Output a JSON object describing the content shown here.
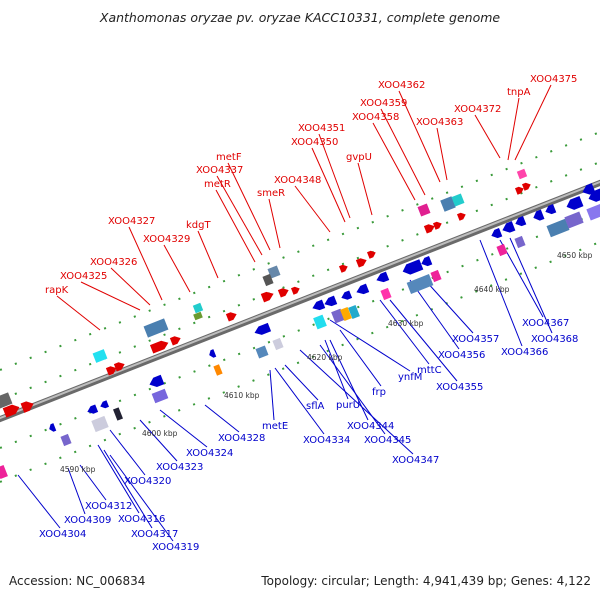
{
  "title": "Xanthomonas oryzae pv. oryzae KACC10331, complete genome",
  "accession": "Accession: NC_006834",
  "summary": "Topology: circular; Length: 4,941,439 bp; Genes: 4,122",
  "colors": {
    "forward": "#e00000",
    "reverse": "#0000cc",
    "backbone": "#888888",
    "tick": "#2a8a2a"
  },
  "scale_labels": [
    "4590 kbp",
    "4600 kbp",
    "4610 kbp",
    "4620 kbp",
    "4630 kbp",
    "4640 kbp",
    "4650 kbp"
  ],
  "forward_labels": [
    "XOO4375",
    "tnpA",
    "XOO4362",
    "XOO4372",
    "XOO4359",
    "XOO4358",
    "XOO4363",
    "XOO4351",
    "XOO4350",
    "gvpU",
    "metF",
    "XOO4337",
    "metR",
    "smeR",
    "XOO4348",
    "kdgT",
    "XOO4327",
    "XOO4329",
    "XOO4326",
    "XOO4325",
    "rapK"
  ],
  "reverse_labels": [
    "XOO4367",
    "XOO4368",
    "XOO4366",
    "XOO4357",
    "XOO4356",
    "mttC",
    "XOO4355",
    "ynfM",
    "frp",
    "purU",
    "XOO4344",
    "XOO4345",
    "XOO4347",
    "sflA",
    "XOO4334",
    "metE",
    "XOO4328",
    "XOO4324",
    "XOO4323",
    "XOO4320",
    "XOO4312",
    "XOO4309",
    "XOO4316",
    "XOO4317",
    "XOO4319",
    "XOO4304"
  ]
}
